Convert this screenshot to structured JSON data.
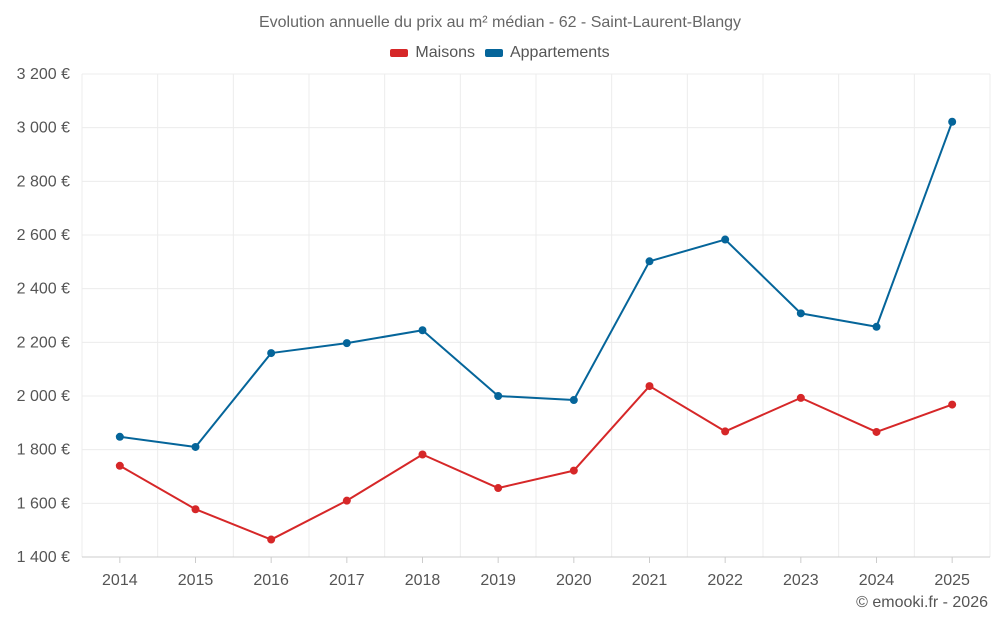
{
  "chart_data": {
    "type": "line",
    "title": "Evolution annuelle du prix au m² médian - 62 - Saint-Laurent-Blangy",
    "xlabel": "",
    "ylabel": "",
    "categories": [
      "2014",
      "2015",
      "2016",
      "2017",
      "2018",
      "2019",
      "2020",
      "2021",
      "2022",
      "2023",
      "2024",
      "2025"
    ],
    "ylim": [
      1400,
      3200
    ],
    "yticks": [
      1400,
      1600,
      1800,
      2000,
      2200,
      2400,
      2600,
      2800,
      3000,
      3200
    ],
    "ytick_labels": [
      "1 400 €",
      "1 600 €",
      "1 800 €",
      "2 000 €",
      "2 200 €",
      "2 400 €",
      "2 600 €",
      "2 800 €",
      "3 000 €",
      "3 200 €"
    ],
    "grid": true,
    "legend_position": "top-center",
    "series": [
      {
        "name": "Maisons",
        "color": "#d62728",
        "values": [
          1740,
          1578,
          1465,
          1610,
          1782,
          1657,
          1722,
          2037,
          1868,
          1993,
          1866,
          1968
        ]
      },
      {
        "name": "Appartements",
        "color": "#05659a",
        "values": [
          1848,
          1810,
          2160,
          2197,
          2245,
          2000,
          1985,
          2502,
          2583,
          2308,
          2258,
          3022
        ]
      }
    ]
  },
  "copyright": "© emooki.fr - 2026"
}
